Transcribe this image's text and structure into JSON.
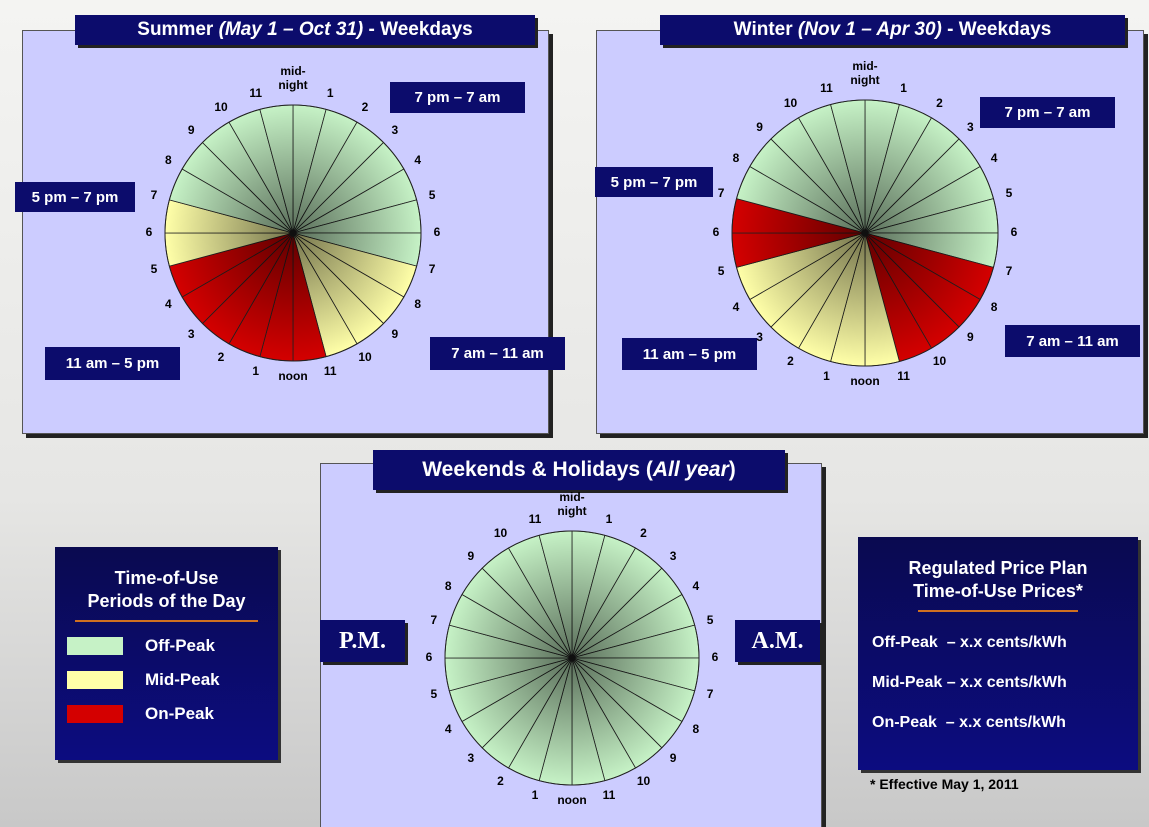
{
  "hour_labels": [
    "mid-\nnight",
    "1",
    "2",
    "3",
    "4",
    "5",
    "6",
    "7",
    "8",
    "9",
    "10",
    "11",
    "noon",
    "1",
    "2",
    "3",
    "4",
    "5",
    "6",
    "7",
    "8",
    "9",
    "10",
    "11"
  ],
  "panels": [
    {
      "title_prefix": "Summer ",
      "title_italic": "(May 1 – Oct 31)",
      "title_suffix": " - Weekdays",
      "slice_colors": [
        "#c6f2c6",
        "#c6f2c6",
        "#c6f2c6",
        "#c6f2c6",
        "#c6f2c6",
        "#c6f2c6",
        "#c6f2c6",
        "#ffffa8",
        "#ffffa8",
        "#ffffa8",
        "#ffffa8",
        "#d40000",
        "#d40000",
        "#d40000",
        "#d40000",
        "#d40000",
        "#d40000",
        "#ffffa8",
        "#ffffa8",
        "#c6f2c6",
        "#c6f2c6",
        "#c6f2c6",
        "#c6f2c6",
        "#c6f2c6"
      ],
      "callouts": [
        "7 pm – 7 am",
        "5 pm – 7 pm",
        "11 am – 5 pm",
        "7 am – 11 am"
      ]
    },
    {
      "title_prefix": "Winter ",
      "title_italic": "(Nov 1 – Apr 30)",
      "title_suffix": " - Weekdays",
      "slice_colors": [
        "#c6f2c6",
        "#c6f2c6",
        "#c6f2c6",
        "#c6f2c6",
        "#c6f2c6",
        "#c6f2c6",
        "#c6f2c6",
        "#d40000",
        "#d40000",
        "#d40000",
        "#d40000",
        "#ffffa8",
        "#ffffa8",
        "#ffffa8",
        "#ffffa8",
        "#ffffa8",
        "#ffffa8",
        "#d40000",
        "#d40000",
        "#c6f2c6",
        "#c6f2c6",
        "#c6f2c6",
        "#c6f2c6",
        "#c6f2c6"
      ],
      "callouts": [
        "7 pm – 7 am",
        "5 pm – 7 pm",
        "11 am – 5 pm",
        "7 am – 11 am"
      ]
    },
    {
      "title_prefix": "Weekends & Holidays (",
      "title_italic": "All year",
      "title_suffix": ")",
      "slice_colors": [
        "#c6f2c6",
        "#c6f2c6",
        "#c6f2c6",
        "#c6f2c6",
        "#c6f2c6",
        "#c6f2c6",
        "#c6f2c6",
        "#c6f2c6",
        "#c6f2c6",
        "#c6f2c6",
        "#c6f2c6",
        "#c6f2c6",
        "#c6f2c6",
        "#c6f2c6",
        "#c6f2c6",
        "#c6f2c6",
        "#c6f2c6",
        "#c6f2c6",
        "#c6f2c6",
        "#c6f2c6",
        "#c6f2c6",
        "#c6f2c6",
        "#c6f2c6",
        "#c6f2c6"
      ],
      "callouts": [
        "P.M.",
        "A.M."
      ]
    }
  ],
  "legend": {
    "title": "Time-of-Use\nPeriods of the Day",
    "items": [
      {
        "label": "Off-Peak",
        "color": "#c6f2c6"
      },
      {
        "label": "Mid-Peak",
        "color": "#ffffa8"
      },
      {
        "label": "On-Peak",
        "color": "#d40000"
      }
    ]
  },
  "prices": {
    "title": "Regulated Price Plan\nTime-of-Use Prices*",
    "lines": [
      "Off-Peak  – x.x cents/kWh",
      "Mid-Peak – x.x cents/kWh",
      "On-Peak  – x.x cents/kWh"
    ],
    "footnote": "* Effective May 1, 2011"
  }
}
